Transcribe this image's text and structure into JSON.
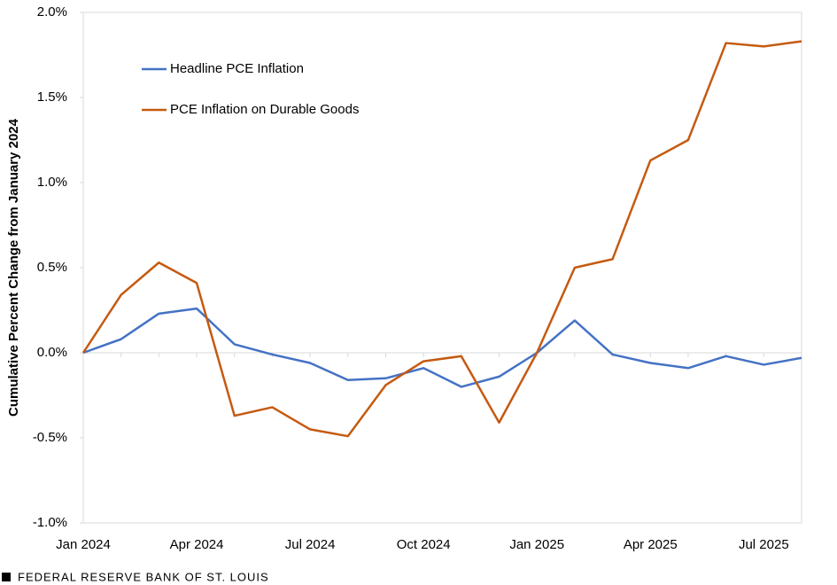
{
  "chart_data": {
    "type": "line",
    "y_label": "Cumulative Percent Change from January 2024",
    "source": "FEDERAL RESERVE BANK OF ST. LOUIS",
    "categories": [
      "Jan 2024",
      null,
      null,
      "Apr 2024",
      null,
      null,
      "Jul 2024",
      null,
      null,
      "Oct 2024",
      null,
      null,
      "Jan 2025",
      null,
      null,
      "Apr 2025",
      null,
      null,
      "Jul 2025",
      null
    ],
    "series": [
      {
        "name": "Headline PCE Inflation",
        "color": "#4472c4",
        "values": [
          0,
          0.08,
          0.23,
          0.26,
          0.05,
          -0.01,
          -0.06,
          -0.16,
          -0.15,
          -0.09,
          -0.2,
          -0.14,
          0,
          0.19,
          -0.01,
          -0.06,
          -0.09,
          -0.02,
          -0.07,
          -0.03
        ]
      },
      {
        "name": "PCE Inflation on Durable Goods",
        "color": "#c55a11",
        "values": [
          0,
          0.34,
          0.53,
          0.41,
          -0.37,
          -0.32,
          -0.45,
          -0.49,
          -0.19,
          -0.05,
          -0.02,
          -0.41,
          0,
          0.5,
          0.55,
          1.13,
          1.25,
          1.82,
          1.8,
          1.83
        ]
      }
    ],
    "ylim": [
      -1,
      2
    ],
    "yticks": [
      {
        "value": -1,
        "label": "-1.0%"
      },
      {
        "value": -0.5,
        "label": "-0.5%"
      },
      {
        "value": 0,
        "label": "0.0%"
      },
      {
        "value": 0.5,
        "label": "0.5%"
      },
      {
        "value": 1,
        "label": "1.0%"
      },
      {
        "value": 1.5,
        "label": "1.5%"
      },
      {
        "value": 2,
        "label": "2.0%"
      }
    ],
    "grid": false,
    "legend": "upper-left"
  }
}
